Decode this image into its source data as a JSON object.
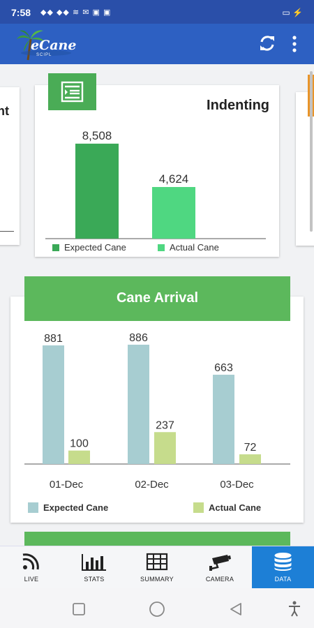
{
  "status_bar": {
    "time": "7:58",
    "icons": "◆◆ ◆◆ ≋ ✉ ▣ ▣",
    "battery": "▭ ⚡"
  },
  "app_bar": {
    "logo_text": "eCane",
    "logo_subtext": "SCIPL",
    "refresh_icon": "refresh-icon",
    "more_icon": "more-vertical-icon",
    "color": "#2d60c2"
  },
  "side_cards": {
    "left_text": "nt"
  },
  "indenting_card": {
    "title": "Indenting",
    "icon": "indent-list-icon"
  },
  "cane_arrival_card": {
    "title": "Cane Arrival"
  },
  "chart_data": [
    {
      "type": "bar",
      "title": "Indenting",
      "categories": [
        ""
      ],
      "series": [
        {
          "name": "Expected Cane",
          "values": [
            8508
          ],
          "color": "#3aa957"
        },
        {
          "name": "Actual Cane",
          "values": [
            4624
          ],
          "color": "#4fd781"
        }
      ],
      "data_labels": [
        "8,508",
        "4,624"
      ],
      "ylim": [
        0,
        10000
      ],
      "legend_position": "bottom"
    },
    {
      "type": "bar",
      "title": "Cane Arrival",
      "categories": [
        "01-Dec",
        "02-Dec",
        "03-Dec"
      ],
      "series": [
        {
          "name": "Expected Cane",
          "values": [
            881,
            886,
            663
          ],
          "color": "#a7cdd1"
        },
        {
          "name": "Actual Cane",
          "values": [
            100,
            237,
            72
          ],
          "color": "#c6dc8c"
        }
      ],
      "ylim": [
        0,
        1000
      ],
      "legend_position": "bottom"
    }
  ],
  "bottom_nav": {
    "items": [
      {
        "label": "LIVE",
        "icon": "rss-feed-icon"
      },
      {
        "label": "STATS",
        "icon": "bar-chart-icon"
      },
      {
        "label": "SUMMARY",
        "icon": "table-grid-icon"
      },
      {
        "label": "CAMERA",
        "icon": "security-camera-icon"
      },
      {
        "label": "DATA",
        "icon": "database-icon"
      }
    ],
    "active_index": 4,
    "active_color": "#1d7fd6"
  },
  "system_nav": {
    "icons": [
      "recent-apps-icon",
      "home-icon",
      "back-icon",
      "accessibility-icon"
    ]
  }
}
